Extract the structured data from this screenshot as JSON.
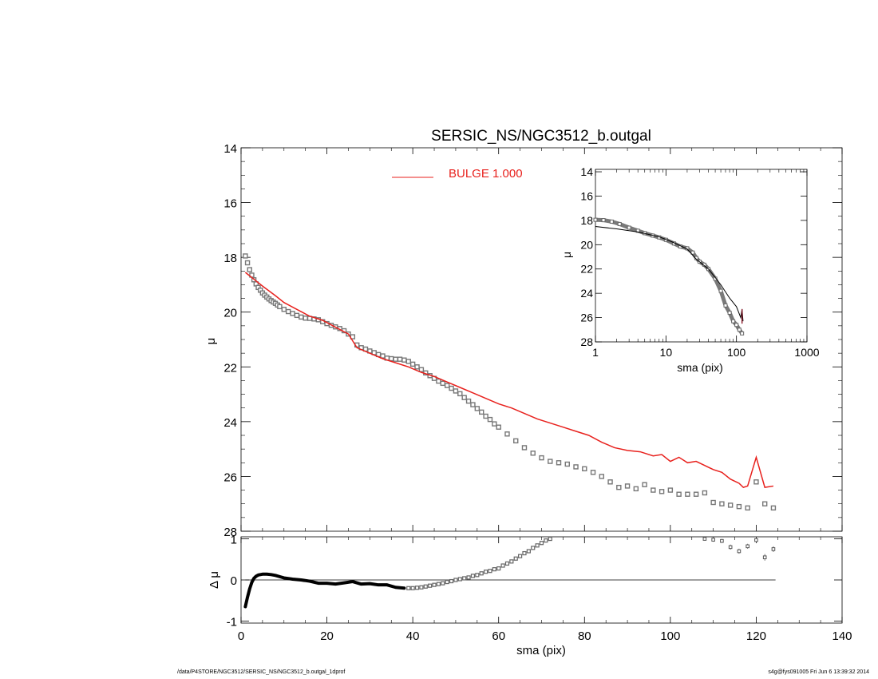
{
  "chart_data": [
    {
      "panel": "main",
      "type": "scatter",
      "title": "SERSIC_NS/NGC3512_b.outgal",
      "ylabel": "μ",
      "xlim": [
        0,
        140
      ],
      "ylim": [
        28,
        14
      ],
      "y_inverted": true,
      "x_ticks": [
        0,
        20,
        40,
        60,
        80,
        100,
        120,
        140
      ],
      "x_tick_labels": [
        "0",
        "20",
        "40",
        "60",
        "80",
        "100",
        "120",
        "140"
      ],
      "y_ticks": [
        14,
        16,
        18,
        20,
        22,
        24,
        26,
        28
      ],
      "y_tick_labels": [
        "14",
        "16",
        "18",
        "20",
        "22",
        "24",
        "26",
        "28"
      ],
      "legend": {
        "label": "BULGE  1.000",
        "color": "#e8211d",
        "placement": "top"
      },
      "data_color": "#777777",
      "model_color": "#e8211d",
      "data_points": [
        [
          1.0,
          17.95
        ],
        [
          1.5,
          18.2
        ],
        [
          2.0,
          18.45
        ],
        [
          2.5,
          18.65
        ],
        [
          3.0,
          18.82
        ],
        [
          3.5,
          18.97
        ],
        [
          4.0,
          19.1
        ],
        [
          4.5,
          19.2
        ],
        [
          5.0,
          19.3
        ],
        [
          5.5,
          19.38
        ],
        [
          6.0,
          19.45
        ],
        [
          6.5,
          19.52
        ],
        [
          7.0,
          19.58
        ],
        [
          7.5,
          19.63
        ],
        [
          8.0,
          19.68
        ],
        [
          8.5,
          19.74
        ],
        [
          9.0,
          19.8
        ],
        [
          10.0,
          19.9
        ],
        [
          11.0,
          19.98
        ],
        [
          12.0,
          20.05
        ],
        [
          13.0,
          20.12
        ],
        [
          14.0,
          20.18
        ],
        [
          15.0,
          20.22
        ],
        [
          16.0,
          20.23
        ],
        [
          17.0,
          20.25
        ],
        [
          18.0,
          20.28
        ],
        [
          19.0,
          20.35
        ],
        [
          20.0,
          20.42
        ],
        [
          21.0,
          20.48
        ],
        [
          22.0,
          20.54
        ],
        [
          23.0,
          20.6
        ],
        [
          24.0,
          20.68
        ],
        [
          25.0,
          20.8
        ],
        [
          26.0,
          20.9
        ],
        [
          27.0,
          21.2
        ],
        [
          28.0,
          21.3
        ],
        [
          29.0,
          21.35
        ],
        [
          30.0,
          21.42
        ],
        [
          31.0,
          21.48
        ],
        [
          32.0,
          21.55
        ],
        [
          33.0,
          21.6
        ],
        [
          34.0,
          21.68
        ],
        [
          35.0,
          21.7
        ],
        [
          36.0,
          21.72
        ],
        [
          37.0,
          21.72
        ],
        [
          38.0,
          21.75
        ],
        [
          39.0,
          21.8
        ],
        [
          40.0,
          21.9
        ],
        [
          41.0,
          22.0
        ],
        [
          42.0,
          22.1
        ],
        [
          43.0,
          22.22
        ],
        [
          44.0,
          22.32
        ],
        [
          45.0,
          22.42
        ],
        [
          46.0,
          22.52
        ],
        [
          47.0,
          22.6
        ],
        [
          48.0,
          22.68
        ],
        [
          49.0,
          22.78
        ],
        [
          50.0,
          22.88
        ],
        [
          51.0,
          22.98
        ],
        [
          52.0,
          23.12
        ],
        [
          53.0,
          23.25
        ],
        [
          54.0,
          23.38
        ],
        [
          55.0,
          23.52
        ],
        [
          56.0,
          23.65
        ],
        [
          57.0,
          23.8
        ],
        [
          58.0,
          23.92
        ],
        [
          59.0,
          24.08
        ],
        [
          60.0,
          24.2
        ],
        [
          62.0,
          24.45
        ],
        [
          64.0,
          24.7
        ],
        [
          66.0,
          24.95
        ],
        [
          68.0,
          25.15
        ],
        [
          70.0,
          25.32
        ],
        [
          72.0,
          25.45
        ],
        [
          74.0,
          25.5
        ],
        [
          76.0,
          25.55
        ],
        [
          78.0,
          25.65
        ],
        [
          80.0,
          25.72
        ],
        [
          82.0,
          25.85
        ],
        [
          84.0,
          26.0
        ],
        [
          86.0,
          26.2
        ],
        [
          88.0,
          26.4
        ],
        [
          90.0,
          26.35
        ],
        [
          92.0,
          26.45
        ],
        [
          94.0,
          26.3
        ],
        [
          96.0,
          26.5
        ],
        [
          98.0,
          26.55
        ],
        [
          100.0,
          26.5
        ],
        [
          102.0,
          26.65
        ],
        [
          104.0,
          26.65
        ],
        [
          106.0,
          26.65
        ],
        [
          108.0,
          26.6
        ],
        [
          110.0,
          26.95
        ],
        [
          112.0,
          27.0
        ],
        [
          114.0,
          27.05
        ],
        [
          116.0,
          27.1
        ],
        [
          118.0,
          27.15
        ],
        [
          120.0,
          26.2
        ],
        [
          122.0,
          27.0
        ],
        [
          124.0,
          27.15
        ]
      ],
      "model_points": [
        [
          1.0,
          18.55
        ],
        [
          3.0,
          18.8
        ],
        [
          5.0,
          19.05
        ],
        [
          8.0,
          19.4
        ],
        [
          10.0,
          19.65
        ],
        [
          13.0,
          19.9
        ],
        [
          16.0,
          20.15
        ],
        [
          19.0,
          20.3
        ],
        [
          22.0,
          20.55
        ],
        [
          25.0,
          20.8
        ],
        [
          27.0,
          21.3
        ],
        [
          30.0,
          21.5
        ],
        [
          33.0,
          21.7
        ],
        [
          36.0,
          21.85
        ],
        [
          39.0,
          22.0
        ],
        [
          42.0,
          22.2
        ],
        [
          45.0,
          22.35
        ],
        [
          48.0,
          22.55
        ],
        [
          51.0,
          22.75
        ],
        [
          54.0,
          22.95
        ],
        [
          57.0,
          23.15
        ],
        [
          60.0,
          23.35
        ],
        [
          63.0,
          23.5
        ],
        [
          66.0,
          23.7
        ],
        [
          69.0,
          23.9
        ],
        [
          72.0,
          24.05
        ],
        [
          75.0,
          24.2
        ],
        [
          78.0,
          24.35
        ],
        [
          81.0,
          24.5
        ],
        [
          84.0,
          24.75
        ],
        [
          87.0,
          24.95
        ],
        [
          90.0,
          25.05
        ],
        [
          93.0,
          25.1
        ],
        [
          96.0,
          25.25
        ],
        [
          98.0,
          25.2
        ],
        [
          100.0,
          25.45
        ],
        [
          102.0,
          25.3
        ],
        [
          104.0,
          25.5
        ],
        [
          106.0,
          25.45
        ],
        [
          108.0,
          25.6
        ],
        [
          110.0,
          25.75
        ],
        [
          112.0,
          25.85
        ],
        [
          114.0,
          26.1
        ],
        [
          116.0,
          26.25
        ],
        [
          117.0,
          26.4
        ],
        [
          118.0,
          26.35
        ],
        [
          120.0,
          25.3
        ],
        [
          122.0,
          26.4
        ],
        [
          124.0,
          26.35
        ]
      ]
    },
    {
      "panel": "residual",
      "type": "scatter",
      "xlabel": "sma (pix)",
      "ylabel": "Δ μ",
      "xlim": [
        0,
        140
      ],
      "ylim": [
        -1,
        1
      ],
      "x_ticks": [
        0,
        20,
        40,
        60,
        80,
        100,
        120,
        140
      ],
      "x_tick_labels": [
        "0",
        "20",
        "40",
        "60",
        "80",
        "100",
        "120",
        "140"
      ],
      "y_ticks": [
        -1,
        0,
        1
      ],
      "y_tick_labels": [
        "-1",
        "0",
        "1"
      ],
      "zero_line": true,
      "curve_points": [
        [
          1.0,
          -0.65
        ],
        [
          1.5,
          -0.42
        ],
        [
          2.0,
          -0.22
        ],
        [
          2.5,
          -0.06
        ],
        [
          3.0,
          0.04
        ],
        [
          3.5,
          0.09
        ],
        [
          4.0,
          0.12
        ],
        [
          5.0,
          0.14
        ],
        [
          6.0,
          0.14
        ],
        [
          7.0,
          0.13
        ],
        [
          8.0,
          0.11
        ],
        [
          9.0,
          0.08
        ],
        [
          10.0,
          0.05
        ],
        [
          12.0,
          0.02
        ],
        [
          14.0,
          0.0
        ],
        [
          16.0,
          -0.03
        ],
        [
          18.0,
          -0.08
        ],
        [
          20.0,
          -0.08
        ],
        [
          22.0,
          -0.1
        ],
        [
          24.0,
          -0.07
        ],
        [
          26.0,
          -0.04
        ],
        [
          28.0,
          -0.1
        ],
        [
          30.0,
          -0.09
        ],
        [
          32.0,
          -0.12
        ],
        [
          34.0,
          -0.12
        ],
        [
          36.0,
          -0.18
        ],
        [
          38.0,
          -0.2
        ]
      ],
      "points": [
        [
          39.0,
          -0.2
        ],
        [
          40.0,
          -0.2
        ],
        [
          41.0,
          -0.19
        ],
        [
          42.0,
          -0.18
        ],
        [
          43.0,
          -0.16
        ],
        [
          44.0,
          -0.14
        ],
        [
          45.0,
          -0.12
        ],
        [
          46.0,
          -0.1
        ],
        [
          47.0,
          -0.08
        ],
        [
          48.0,
          -0.05
        ],
        [
          49.0,
          -0.03
        ],
        [
          50.0,
          0.0
        ],
        [
          51.0,
          0.02
        ],
        [
          52.0,
          0.04
        ],
        [
          53.0,
          0.06
        ],
        [
          54.0,
          0.1
        ],
        [
          55.0,
          0.12
        ],
        [
          56.0,
          0.16
        ],
        [
          57.0,
          0.2
        ],
        [
          58.0,
          0.22
        ],
        [
          59.0,
          0.26
        ],
        [
          60.0,
          0.28
        ],
        [
          61.0,
          0.35
        ],
        [
          62.0,
          0.4
        ],
        [
          63.0,
          0.45
        ],
        [
          64.0,
          0.52
        ],
        [
          65.0,
          0.58
        ],
        [
          66.0,
          0.65
        ],
        [
          67.0,
          0.7
        ],
        [
          68.0,
          0.78
        ],
        [
          69.0,
          0.84
        ],
        [
          70.0,
          0.9
        ],
        [
          71.0,
          0.96
        ],
        [
          72.0,
          1.0
        ]
      ],
      "error_points": [
        [
          108.0,
          1.0,
          0.04
        ],
        [
          110.0,
          0.98,
          0.05
        ],
        [
          112.0,
          0.95,
          0.05
        ],
        [
          114.0,
          0.8,
          0.06
        ],
        [
          116.0,
          0.7,
          0.06
        ],
        [
          118.0,
          0.82,
          0.06
        ],
        [
          120.0,
          0.97,
          0.05
        ],
        [
          122.0,
          0.55,
          0.08
        ],
        [
          124.0,
          0.75,
          0.07
        ]
      ]
    },
    {
      "panel": "inset",
      "type": "line",
      "xlabel": "sma (pix)",
      "ylabel": "μ",
      "x_scale": "log",
      "xlim": [
        1,
        1000
      ],
      "ylim": [
        28,
        14
      ],
      "y_inverted": true,
      "x_ticks": [
        1,
        10,
        100,
        1000
      ],
      "x_tick_labels": [
        "1",
        "10",
        "100",
        "1000"
      ],
      "y_ticks": [
        14,
        16,
        18,
        20,
        22,
        24,
        26,
        28
      ],
      "y_tick_labels": [
        "14",
        "16",
        "18",
        "20",
        "22",
        "24",
        "26",
        "28"
      ],
      "data_points": [
        [
          1.0,
          17.95
        ],
        [
          1.3,
          17.98
        ],
        [
          1.7,
          18.1
        ],
        [
          2.2,
          18.3
        ],
        [
          3.0,
          18.6
        ],
        [
          4.0,
          18.85
        ],
        [
          5.0,
          19.05
        ],
        [
          6.5,
          19.25
        ],
        [
          8.0,
          19.4
        ],
        [
          10.0,
          19.6
        ],
        [
          13.0,
          19.9
        ],
        [
          16.0,
          20.15
        ],
        [
          20.0,
          20.3
        ],
        [
          24.0,
          20.65
        ],
        [
          27.0,
          21.1
        ],
        [
          30.0,
          21.4
        ],
        [
          35.0,
          21.65
        ],
        [
          40.0,
          22.0
        ],
        [
          50.0,
          22.8
        ],
        [
          60.0,
          23.8
        ],
        [
          70.0,
          25.0
        ],
        [
          80.0,
          25.6
        ],
        [
          90.0,
          26.3
        ],
        [
          100.0,
          26.6
        ],
        [
          110.0,
          27.0
        ],
        [
          120.0,
          27.3
        ]
      ],
      "model_points": [
        [
          1.0,
          18.5
        ],
        [
          2.0,
          18.7
        ],
        [
          4.0,
          18.95
        ],
        [
          8.0,
          19.35
        ],
        [
          12.0,
          19.75
        ],
        [
          20.0,
          20.35
        ],
        [
          27.0,
          21.2
        ],
        [
          40.0,
          22.0
        ],
        [
          50.0,
          22.7
        ],
        [
          60.0,
          23.3
        ],
        [
          80.0,
          24.4
        ],
        [
          100.0,
          25.1
        ],
        [
          115.0,
          26.0
        ],
        [
          120.0,
          25.3
        ],
        [
          124.0,
          26.3
        ]
      ]
    }
  ],
  "footer": {
    "path": "/data/P4STORE/NGC3512/SERSIC_NS/NGC3512_b.outgal_1dprof",
    "stamp": "s4g@fys091005  Fri Jun  6 13:39:32 2014"
  }
}
